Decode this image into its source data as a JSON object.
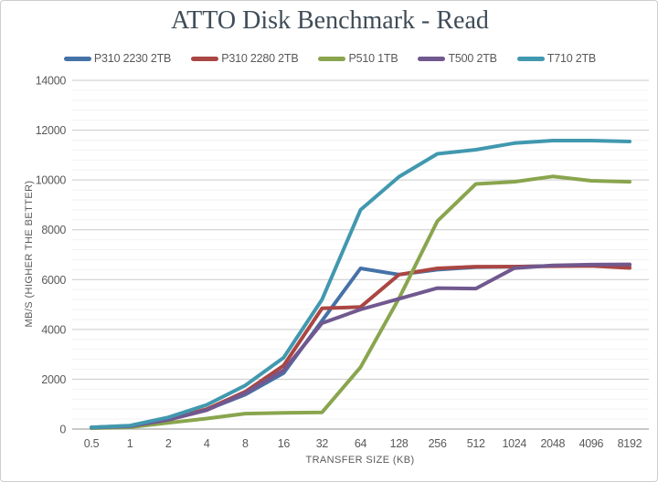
{
  "chart_data": {
    "type": "line",
    "title": "ATTO Disk Benchmark - Read",
    "xlabel": "TRANSFER SIZE (KB)",
    "ylabel": "MB/S (HIGHER THE BETTER)",
    "categories": [
      "0.5",
      "1",
      "2",
      "4",
      "8",
      "16",
      "32",
      "64",
      "128",
      "256",
      "512",
      "1024",
      "2048",
      "4096",
      "8192"
    ],
    "ylim": [
      0,
      14000
    ],
    "y_ticks": [
      0,
      2000,
      4000,
      6000,
      8000,
      10000,
      12000,
      14000
    ],
    "y_major_step": 2000,
    "y_minor_step": 400,
    "grid": "horizontal major + minor, no vertical grid",
    "legend_position": "top",
    "series": [
      {
        "name": "P310 2230 2TB",
        "color": "#4572A7",
        "values": [
          60,
          120,
          380,
          780,
          1380,
          2250,
          4350,
          6450,
          6200,
          6400,
          6500,
          6520,
          6550,
          6570,
          6580
        ]
      },
      {
        "name": "P310 2280 2TB",
        "color": "#AA4643",
        "values": [
          65,
          130,
          390,
          800,
          1500,
          2550,
          4850,
          4900,
          6200,
          6450,
          6520,
          6520,
          6540,
          6550,
          6470
        ]
      },
      {
        "name": "P510 1TB",
        "color": "#89A54E",
        "values": [
          35,
          75,
          250,
          420,
          620,
          650,
          670,
          2480,
          5250,
          8350,
          9840,
          9930,
          10140,
          9970,
          9930
        ]
      },
      {
        "name": "T500 2TB",
        "color": "#71588F",
        "values": [
          55,
          115,
          370,
          760,
          1440,
          2360,
          4250,
          4800,
          5230,
          5660,
          5640,
          6460,
          6570,
          6600,
          6610
        ]
      },
      {
        "name": "T710 2TB",
        "color": "#4198AF",
        "values": [
          70,
          140,
          470,
          970,
          1750,
          2870,
          5200,
          8800,
          10130,
          11050,
          11215,
          11480,
          11580,
          11580,
          11545
        ]
      }
    ],
    "style": {
      "major_grid_color": "#c9c9c9",
      "minor_grid_color": "#f2f2f2",
      "axis_line_color": "#a8a8a8",
      "tick_label_color": "#595959",
      "line_width": 4
    }
  }
}
